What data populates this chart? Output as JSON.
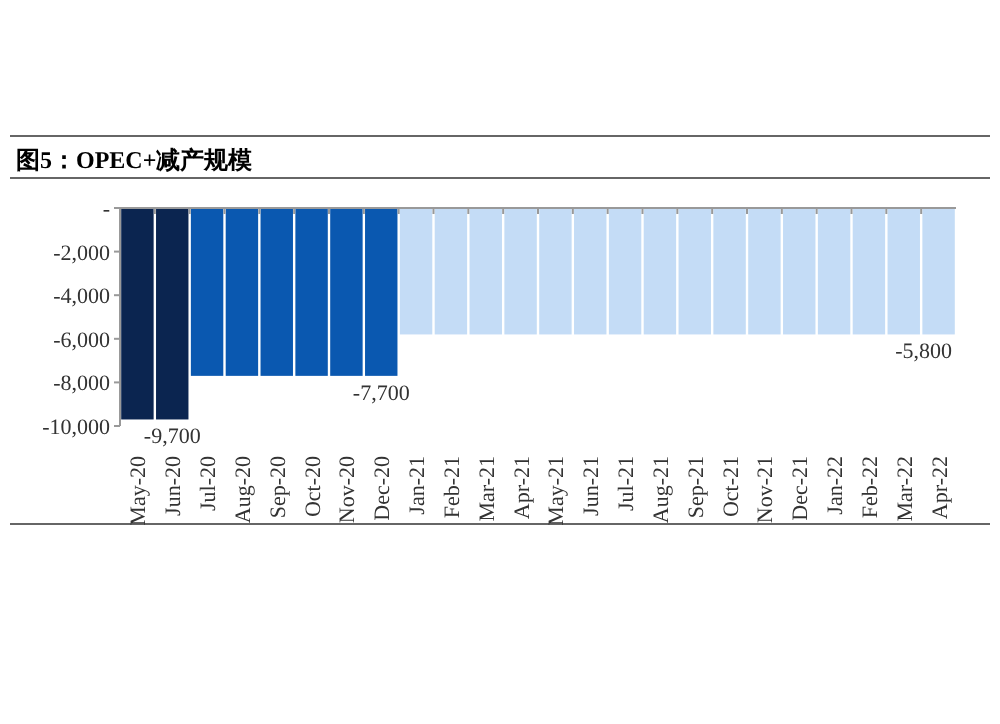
{
  "chart_data": {
    "type": "bar",
    "title": "图5：OPEC+减产规模",
    "categories": [
      "May-20",
      "Jun-20",
      "Jul-20",
      "Aug-20",
      "Sep-20",
      "Oct-20",
      "Nov-20",
      "Dec-20",
      "Jan-21",
      "Feb-21",
      "Mar-21",
      "Apr-21",
      "May-21",
      "Jun-21",
      "Jul-21",
      "Aug-21",
      "Sep-21",
      "Oct-21",
      "Nov-21",
      "Dec-21",
      "Jan-22",
      "Feb-22",
      "Mar-22",
      "Apr-22"
    ],
    "values": [
      -9700,
      -9700,
      -7700,
      -7700,
      -7700,
      -7700,
      -7700,
      -7700,
      -5800,
      -5800,
      -5800,
      -5800,
      -5800,
      -5800,
      -5800,
      -5800,
      -5800,
      -5800,
      -5800,
      -5800,
      -5800,
      -5800,
      -5800,
      -5800
    ],
    "colors": [
      "#0b2550",
      "#0b2550",
      "#0a58b0",
      "#0a58b0",
      "#0a58b0",
      "#0a58b0",
      "#0a58b0",
      "#0a58b0",
      "#c4dcf6",
      "#c4dcf6",
      "#c4dcf6",
      "#c4dcf6",
      "#c4dcf6",
      "#c4dcf6",
      "#c4dcf6",
      "#c4dcf6",
      "#c4dcf6",
      "#c4dcf6",
      "#c4dcf6",
      "#c4dcf6",
      "#c4dcf6",
      "#c4dcf6",
      "#c4dcf6",
      "#c4dcf6"
    ],
    "value_labels": [
      null,
      "-9,700",
      null,
      null,
      null,
      null,
      null,
      "-7,700",
      null,
      null,
      null,
      null,
      null,
      null,
      null,
      null,
      null,
      null,
      null,
      null,
      null,
      null,
      null,
      "-5,800"
    ],
    "ylim": [
      -10000,
      0
    ],
    "yticks": [
      {
        "value": 0,
        "label": "-"
      },
      {
        "value": -2000,
        "label": "-2,000"
      },
      {
        "value": -4000,
        "label": "-4,000"
      },
      {
        "value": -6000,
        "label": "-6,000"
      },
      {
        "value": -8000,
        "label": "-8,000"
      },
      {
        "value": -10000,
        "label": "-10,000"
      }
    ],
    "grid": false
  }
}
